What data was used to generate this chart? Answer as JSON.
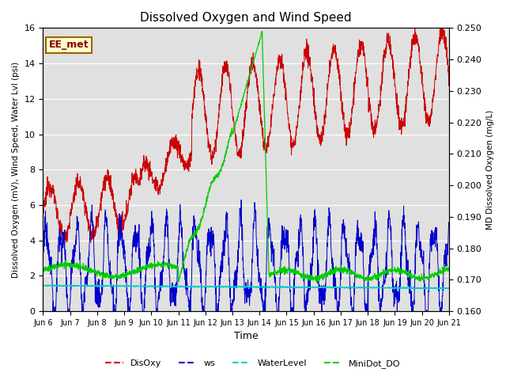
{
  "title": "Dissolved Oxygen and Wind Speed",
  "xlabel": "Time",
  "ylabel_left": "Dissolved Oxygen (mV), Wind Speed, Water Lvl (psi)",
  "ylabel_right": "MD Dissolved Oxygen (mg/L)",
  "annotation": "EE_met",
  "ylim_left": [
    0,
    16
  ],
  "ylim_right": [
    0.16,
    0.25
  ],
  "yticks_left": [
    0,
    2,
    4,
    6,
    8,
    10,
    12,
    14,
    16
  ],
  "yticks_right": [
    0.16,
    0.17,
    0.18,
    0.19,
    0.2,
    0.21,
    0.22,
    0.23,
    0.24,
    0.25
  ],
  "xtick_labels": [
    "Jun 6",
    "Jun 7",
    "Jun 8",
    "Jun 9",
    "Jun 10",
    "Jun 11",
    "Jun 12",
    "Jun 13",
    "Jun 14",
    "Jun 15",
    "Jun 16",
    "Jun 17",
    "Jun 18",
    "Jun 19",
    "Jun 20",
    "Jun 21"
  ],
  "colors": {
    "DisOxy": "#cc0000",
    "ws": "#0000cc",
    "WaterLevel": "#00cccc",
    "MiniDot_DO": "#00cc00"
  },
  "background_color": "#e0e0e0",
  "fig_bg": "#ffffff"
}
